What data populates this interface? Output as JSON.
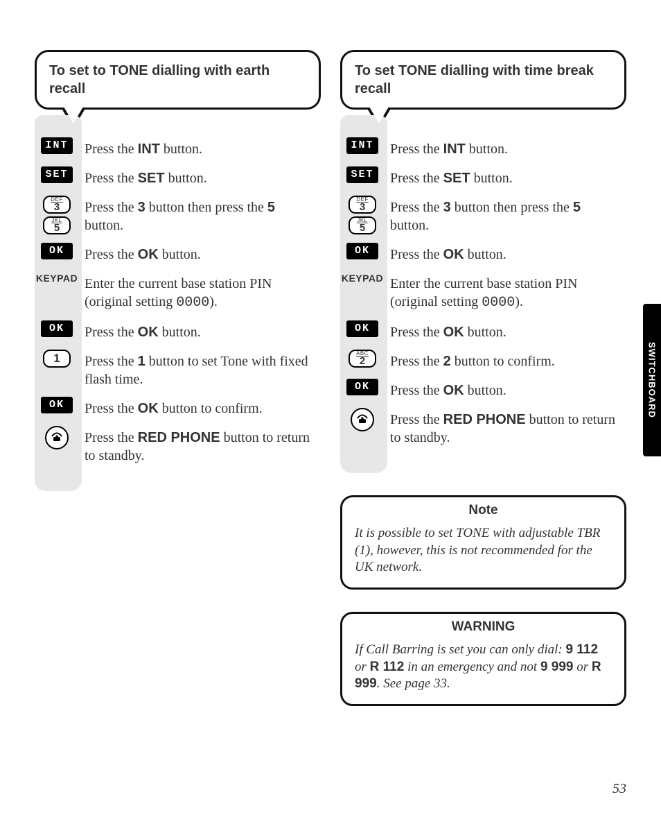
{
  "page_number": "53",
  "side_tab": "SWITCHBOARD",
  "left": {
    "title": "To set to TONE dialling with earth recall",
    "steps": [
      {
        "icon": "int",
        "html": "Press the <b>INT</b> button."
      },
      {
        "icon": "set",
        "html": "Press the <b>SET</b> button."
      },
      {
        "icon": "k3k5",
        "html": "Press the <b>3</b> button then press the <b>5</b> button."
      },
      {
        "icon": "ok",
        "html": "Press the <b>OK</b> button."
      },
      {
        "icon": "keypad",
        "html": "Enter the current base station PIN (original setting <span class='mono'>0000</span>)."
      },
      {
        "icon": "ok",
        "html": "Press the <b>OK</b> button."
      },
      {
        "icon": "k1",
        "html": "Press the <b>1</b> button to set Tone with fixed flash time."
      },
      {
        "icon": "ok",
        "html": "Press the <b>OK</b> button to confirm."
      },
      {
        "icon": "phone",
        "html": "Press the <b>RED PHONE</b> button to return to standby."
      }
    ]
  },
  "right": {
    "title": "To set TONE dialling with time break recall",
    "steps": [
      {
        "icon": "int",
        "html": "Press the <b>INT</b> button."
      },
      {
        "icon": "set",
        "html": "Press the <b>SET</b> button."
      },
      {
        "icon": "k3k5",
        "html": "Press the <b>3</b> button then press the <b>5</b> button."
      },
      {
        "icon": "ok",
        "html": "Press the <b>OK</b> button."
      },
      {
        "icon": "keypad",
        "html": "Enter the current base station PIN (original setting <span class='mono'>0000</span>)."
      },
      {
        "icon": "ok",
        "html": "Press the <b>OK</b> button."
      },
      {
        "icon": "k2",
        "html": "Press the <b>2</b> button to confirm."
      },
      {
        "icon": "ok",
        "html": "Press the <b>OK</b> button."
      },
      {
        "icon": "phone",
        "html": "Press the <b>RED PHONE</b> button to return to standby."
      }
    ]
  },
  "note": {
    "label": "Note",
    "body": "It is possible to set TONE with adjustable TBR (1), however, this is not recommended for the UK network."
  },
  "warning": {
    "label": "WARNING",
    "body_html": "<span>If Call Barring is set you can only dial:</span> <b>9 112</b> <span>or</span> <b>R 112</b> <span>in an emergency and not</span> <b>9 999</b> <span>or</span> <b>R 999</b><span>. See page 33.</span>"
  },
  "buttons": {
    "INT": "INT",
    "SET": "SET",
    "OK": "OK",
    "KEYPAD": "KEYPAD",
    "k1": {
      "big": "1"
    },
    "k2": {
      "tiny": "ABC",
      "big": "2"
    },
    "k3": {
      "tiny": "DEF",
      "big": "3"
    },
    "k5": {
      "tiny": "JKL",
      "big": "5"
    }
  }
}
